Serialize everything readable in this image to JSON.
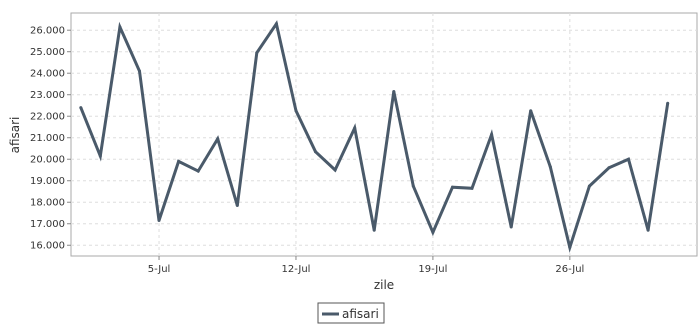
{
  "chart_data": {
    "type": "line",
    "title": "",
    "xlabel": "zile",
    "ylabel": "afisari",
    "ylim": [
      15500,
      26800
    ],
    "yticks": [
      16000,
      17000,
      18000,
      19000,
      20000,
      21000,
      22000,
      23000,
      24000,
      25000,
      26000
    ],
    "ytick_labels": [
      "16.000",
      "17.000",
      "18.000",
      "19.000",
      "20.000",
      "21.000",
      "22.000",
      "23.000",
      "24.000",
      "25.000",
      "26.000"
    ],
    "xlim": [
      "2023-06-30T12:00",
      "2023-08-01T12:00"
    ],
    "xticks": [
      "2023-07-05",
      "2023-07-12",
      "2023-07-19",
      "2023-07-26"
    ],
    "xtick_labels": [
      "5-Jul",
      "12-Jul",
      "19-Jul",
      "26-Jul"
    ],
    "grid": true,
    "legend_position": "bottom-center",
    "series": [
      {
        "name": "afisari",
        "color": "#4a5a6a",
        "x": [
          "2023-07-01",
          "2023-07-02",
          "2023-07-03",
          "2023-07-04",
          "2023-07-05",
          "2023-07-06",
          "2023-07-07",
          "2023-07-08",
          "2023-07-09",
          "2023-07-10",
          "2023-07-11",
          "2023-07-12",
          "2023-07-13",
          "2023-07-14",
          "2023-07-15",
          "2023-07-16",
          "2023-07-17",
          "2023-07-18",
          "2023-07-19",
          "2023-07-20",
          "2023-07-21",
          "2023-07-22",
          "2023-07-23",
          "2023-07-24",
          "2023-07-25",
          "2023-07-26",
          "2023-07-27",
          "2023-07-28",
          "2023-07-29",
          "2023-07-30",
          "2023-07-31"
        ],
        "values": [
          22400,
          20150,
          26150,
          24100,
          17150,
          19900,
          19450,
          20950,
          17850,
          24950,
          26300,
          22250,
          20350,
          19500,
          21450,
          16700,
          23150,
          18750,
          16600,
          18700,
          18650,
          21150,
          16850,
          22250,
          19650,
          15900,
          18750,
          19600,
          20000,
          16700,
          22600
        ]
      }
    ]
  }
}
